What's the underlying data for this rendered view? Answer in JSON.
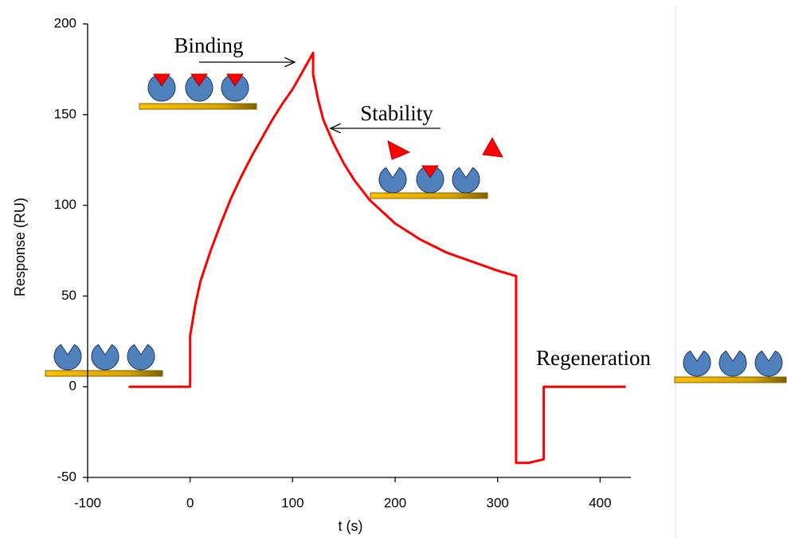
{
  "chart_data": {
    "type": "line",
    "y_label": "Response (RU)",
    "x_label": "t (s)",
    "annotations": [
      "Binding",
      "Stability",
      "Regeneration"
    ],
    "x": [
      -60,
      0,
      0,
      5,
      10,
      20,
      30,
      40,
      50,
      60,
      70,
      80,
      90,
      100,
      110,
      120,
      120,
      125,
      130,
      140,
      150,
      160,
      175,
      200,
      225,
      250,
      275,
      300,
      318,
      318,
      330,
      345,
      345,
      425
    ],
    "values": [
      0,
      0,
      28,
      45,
      58,
      75,
      90,
      104,
      116,
      127,
      137,
      147,
      156,
      164,
      174,
      184,
      172,
      158,
      147,
      134,
      123,
      114,
      103,
      90,
      81,
      74,
      69,
      64,
      61,
      -42,
      -42,
      -40,
      0,
      0
    ],
    "color": "#ff0000",
    "xlim": [
      -100,
      430
    ],
    "xticks": [
      -100,
      0,
      100,
      200,
      300,
      400
    ],
    "ylim": [
      -50,
      200
    ],
    "yticks": [
      -50,
      0,
      50,
      100,
      150,
      200
    ],
    "grid": false
  }
}
